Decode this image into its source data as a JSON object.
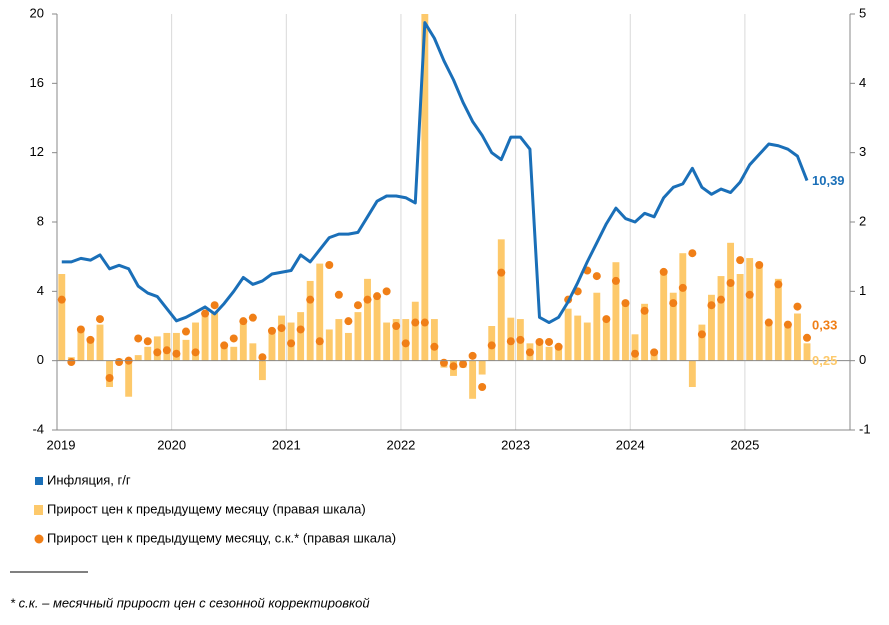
{
  "chart_data": {
    "type": "combo",
    "categories": [
      "2019",
      null,
      null,
      null,
      null,
      null,
      null,
      null,
      null,
      null,
      null,
      null,
      "2020",
      null,
      null,
      null,
      null,
      null,
      null,
      null,
      null,
      null,
      null,
      null,
      "2021",
      null,
      null,
      null,
      null,
      null,
      null,
      null,
      null,
      null,
      null,
      null,
      "2022",
      null,
      null,
      null,
      null,
      null,
      null,
      null,
      null,
      null,
      null,
      null,
      "2023",
      null,
      null,
      null,
      null,
      null,
      null,
      null,
      null,
      null,
      null,
      null,
      "2024",
      null,
      null,
      null,
      null,
      null,
      null,
      null,
      null,
      null,
      null,
      null,
      "2025",
      null,
      null,
      null,
      null,
      null,
      null
    ],
    "ylim": [
      -4,
      20
    ],
    "yticks": [
      -4,
      0,
      4,
      8,
      12,
      16,
      20
    ],
    "y2lim": [
      -1,
      5
    ],
    "y2ticks": [
      -1,
      0,
      1,
      2,
      3,
      4,
      5
    ],
    "series": [
      {
        "name": "Инфляция, г/г",
        "type": "line",
        "color": "#1a6fb8",
        "axis": "y",
        "values": [
          5.7,
          5.7,
          5.9,
          5.8,
          6.1,
          5.3,
          5.5,
          5.3,
          4.3,
          3.9,
          3.7,
          3.0,
          2.3,
          2.5,
          2.8,
          3.1,
          2.7,
          3.3,
          4.0,
          4.8,
          4.4,
          4.6,
          5.0,
          5.1,
          5.2,
          6.1,
          5.7,
          6.4,
          7.1,
          7.3,
          7.3,
          7.4,
          8.3,
          9.2,
          9.5,
          9.5,
          9.4,
          9.1,
          19.5,
          18.6,
          17.3,
          16.2,
          14.9,
          13.8,
          13.0,
          12.0,
          11.6,
          12.9,
          12.9,
          12.2,
          2.5,
          2.2,
          2.5,
          3.4,
          4.5,
          5.7,
          6.8,
          7.9,
          8.8,
          8.2,
          8.0,
          8.5,
          8.3,
          9.4,
          10.0,
          10.2,
          11.1,
          10.0,
          9.6,
          9.9,
          9.7,
          10.3,
          11.3,
          11.9,
          12.5,
          12.4,
          12.2,
          11.8,
          10.39
        ],
        "value_labels": [
          null,
          null,
          null,
          null,
          null,
          null,
          null,
          null,
          null,
          null,
          null,
          null,
          null,
          null,
          null,
          null,
          null,
          null,
          null,
          null,
          null,
          null,
          null,
          null,
          null,
          null,
          null,
          null,
          null,
          null,
          null,
          null,
          null,
          null,
          null,
          null,
          null,
          null,
          null,
          null,
          null,
          null,
          null,
          null,
          null,
          null,
          null,
          null,
          null,
          null,
          null,
          null,
          null,
          null,
          null,
          null,
          null,
          null,
          null,
          null,
          null,
          null,
          null,
          null,
          null,
          null,
          null,
          null,
          null,
          null,
          null,
          null,
          null,
          null,
          null,
          null,
          null,
          null,
          "10,39"
        ]
      },
      {
        "name": "Прирост цен к предыдущему месяцу (правая шкала)",
        "type": "bar",
        "color": "#fdc96b",
        "axis": "y2",
        "values": [
          1.25,
          0.05,
          0.45,
          0.3,
          0.52,
          -0.38,
          0.03,
          -0.52,
          0.08,
          0.2,
          0.35,
          0.4,
          0.4,
          0.3,
          0.55,
          0.65,
          0.7,
          0.25,
          0.2,
          0.55,
          0.25,
          -0.28,
          0.45,
          0.65,
          0.55,
          0.7,
          1.15,
          1.4,
          0.45,
          0.6,
          0.4,
          0.7,
          1.18,
          0.9,
          0.55,
          0.6,
          0.6,
          0.85,
          5.0,
          0.6,
          -0.1,
          -0.22,
          -0.1,
          -0.55,
          -0.2,
          0.5,
          1.75,
          0.62,
          0.6,
          0.25,
          0.25,
          0.2,
          0.2,
          0.75,
          0.65,
          0.55,
          0.98,
          0.6,
          1.42,
          0.85,
          0.38,
          0.82,
          0.1,
          1.28,
          0.98,
          1.55,
          -0.38,
          0.52,
          0.95,
          1.22,
          1.7,
          1.25,
          1.48,
          1.38,
          0.58,
          1.18,
          0.55,
          0.68,
          0.25
        ],
        "value_labels": [
          null,
          null,
          null,
          null,
          null,
          null,
          null,
          null,
          null,
          null,
          null,
          null,
          null,
          null,
          null,
          null,
          null,
          null,
          null,
          null,
          null,
          null,
          null,
          null,
          null,
          null,
          null,
          null,
          null,
          null,
          null,
          null,
          null,
          null,
          null,
          null,
          null,
          null,
          null,
          null,
          null,
          null,
          null,
          null,
          null,
          null,
          null,
          null,
          null,
          null,
          null,
          null,
          null,
          null,
          null,
          null,
          null,
          null,
          null,
          null,
          null,
          null,
          null,
          null,
          null,
          null,
          null,
          null,
          null,
          null,
          null,
          null,
          null,
          null,
          null,
          null,
          null,
          null,
          "0,25"
        ]
      },
      {
        "name": "Прирост цен к предыдущему месяцу, с.к.* (правая шкала)",
        "type": "scatter",
        "color": "#f07f17",
        "axis": "y2",
        "values": [
          0.88,
          -0.02,
          0.45,
          0.3,
          0.6,
          -0.25,
          -0.02,
          0.0,
          0.32,
          0.28,
          0.12,
          0.15,
          0.1,
          0.42,
          0.12,
          0.68,
          0.8,
          0.22,
          0.32,
          0.57,
          0.62,
          0.05,
          0.43,
          0.47,
          0.25,
          0.45,
          0.88,
          0.28,
          1.38,
          0.95,
          0.57,
          0.8,
          0.88,
          0.93,
          1.0,
          0.5,
          0.25,
          0.55,
          0.55,
          0.2,
          -0.03,
          -0.08,
          -0.05,
          0.07,
          -0.38,
          0.22,
          1.27,
          0.28,
          0.3,
          0.12,
          0.27,
          0.27,
          0.2,
          0.88,
          1.0,
          1.3,
          1.22,
          0.6,
          1.15,
          0.83,
          0.1,
          0.72,
          0.12,
          1.28,
          0.83,
          1.05,
          1.55,
          0.38,
          0.8,
          0.88,
          1.12,
          1.45,
          0.95,
          1.38,
          0.55,
          1.1,
          0.52,
          0.78,
          0.33
        ],
        "value_labels": [
          null,
          null,
          null,
          null,
          null,
          null,
          null,
          null,
          null,
          null,
          null,
          null,
          null,
          null,
          null,
          null,
          null,
          null,
          null,
          null,
          null,
          null,
          null,
          null,
          null,
          null,
          null,
          null,
          null,
          null,
          null,
          null,
          null,
          null,
          null,
          null,
          null,
          null,
          null,
          null,
          null,
          null,
          null,
          null,
          null,
          null,
          null,
          null,
          null,
          null,
          null,
          null,
          null,
          null,
          null,
          null,
          null,
          null,
          null,
          null,
          null,
          null,
          null,
          null,
          null,
          null,
          null,
          null,
          null,
          null,
          null,
          null,
          null,
          null,
          null,
          null,
          null,
          null,
          "0,33"
        ]
      }
    ],
    "footnote": "* с.к. – месячный прирост цен с сезонной корректировкой"
  }
}
